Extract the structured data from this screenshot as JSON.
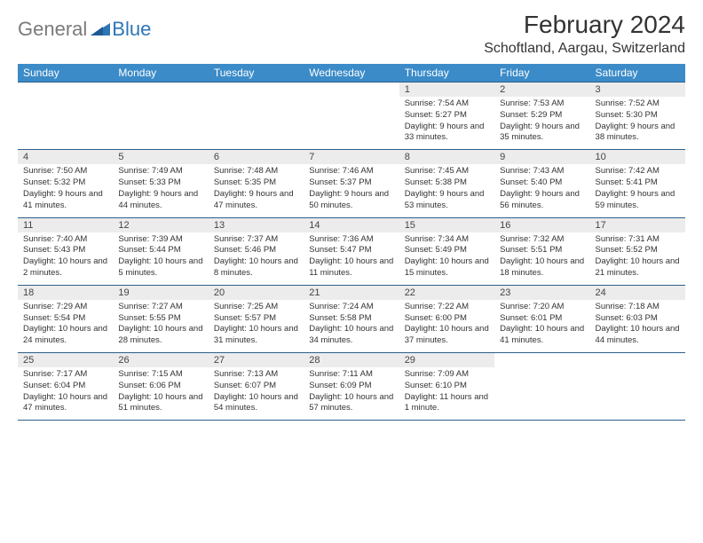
{
  "logo": {
    "general": "General",
    "blue": "Blue"
  },
  "title": "February 2024",
  "location": "Schoftland, Aargau, Switzerland",
  "colors": {
    "header_bg": "#3b8bc8",
    "header_text": "#ffffff",
    "daynum_bg": "#ececec",
    "border": "#2e5f8a",
    "text": "#333333",
    "logo_gray": "#7a7a7a",
    "logo_blue": "#2e75b6"
  },
  "day_names": [
    "Sunday",
    "Monday",
    "Tuesday",
    "Wednesday",
    "Thursday",
    "Friday",
    "Saturday"
  ],
  "weeks": [
    [
      null,
      null,
      null,
      null,
      {
        "n": "1",
        "sr": "7:54 AM",
        "ss": "5:27 PM",
        "dl": "9 hours and 33 minutes."
      },
      {
        "n": "2",
        "sr": "7:53 AM",
        "ss": "5:29 PM",
        "dl": "9 hours and 35 minutes."
      },
      {
        "n": "3",
        "sr": "7:52 AM",
        "ss": "5:30 PM",
        "dl": "9 hours and 38 minutes."
      }
    ],
    [
      {
        "n": "4",
        "sr": "7:50 AM",
        "ss": "5:32 PM",
        "dl": "9 hours and 41 minutes."
      },
      {
        "n": "5",
        "sr": "7:49 AM",
        "ss": "5:33 PM",
        "dl": "9 hours and 44 minutes."
      },
      {
        "n": "6",
        "sr": "7:48 AM",
        "ss": "5:35 PM",
        "dl": "9 hours and 47 minutes."
      },
      {
        "n": "7",
        "sr": "7:46 AM",
        "ss": "5:37 PM",
        "dl": "9 hours and 50 minutes."
      },
      {
        "n": "8",
        "sr": "7:45 AM",
        "ss": "5:38 PM",
        "dl": "9 hours and 53 minutes."
      },
      {
        "n": "9",
        "sr": "7:43 AM",
        "ss": "5:40 PM",
        "dl": "9 hours and 56 minutes."
      },
      {
        "n": "10",
        "sr": "7:42 AM",
        "ss": "5:41 PM",
        "dl": "9 hours and 59 minutes."
      }
    ],
    [
      {
        "n": "11",
        "sr": "7:40 AM",
        "ss": "5:43 PM",
        "dl": "10 hours and 2 minutes."
      },
      {
        "n": "12",
        "sr": "7:39 AM",
        "ss": "5:44 PM",
        "dl": "10 hours and 5 minutes."
      },
      {
        "n": "13",
        "sr": "7:37 AM",
        "ss": "5:46 PM",
        "dl": "10 hours and 8 minutes."
      },
      {
        "n": "14",
        "sr": "7:36 AM",
        "ss": "5:47 PM",
        "dl": "10 hours and 11 minutes."
      },
      {
        "n": "15",
        "sr": "7:34 AM",
        "ss": "5:49 PM",
        "dl": "10 hours and 15 minutes."
      },
      {
        "n": "16",
        "sr": "7:32 AM",
        "ss": "5:51 PM",
        "dl": "10 hours and 18 minutes."
      },
      {
        "n": "17",
        "sr": "7:31 AM",
        "ss": "5:52 PM",
        "dl": "10 hours and 21 minutes."
      }
    ],
    [
      {
        "n": "18",
        "sr": "7:29 AM",
        "ss": "5:54 PM",
        "dl": "10 hours and 24 minutes."
      },
      {
        "n": "19",
        "sr": "7:27 AM",
        "ss": "5:55 PM",
        "dl": "10 hours and 28 minutes."
      },
      {
        "n": "20",
        "sr": "7:25 AM",
        "ss": "5:57 PM",
        "dl": "10 hours and 31 minutes."
      },
      {
        "n": "21",
        "sr": "7:24 AM",
        "ss": "5:58 PM",
        "dl": "10 hours and 34 minutes."
      },
      {
        "n": "22",
        "sr": "7:22 AM",
        "ss": "6:00 PM",
        "dl": "10 hours and 37 minutes."
      },
      {
        "n": "23",
        "sr": "7:20 AM",
        "ss": "6:01 PM",
        "dl": "10 hours and 41 minutes."
      },
      {
        "n": "24",
        "sr": "7:18 AM",
        "ss": "6:03 PM",
        "dl": "10 hours and 44 minutes."
      }
    ],
    [
      {
        "n": "25",
        "sr": "7:17 AM",
        "ss": "6:04 PM",
        "dl": "10 hours and 47 minutes."
      },
      {
        "n": "26",
        "sr": "7:15 AM",
        "ss": "6:06 PM",
        "dl": "10 hours and 51 minutes."
      },
      {
        "n": "27",
        "sr": "7:13 AM",
        "ss": "6:07 PM",
        "dl": "10 hours and 54 minutes."
      },
      {
        "n": "28",
        "sr": "7:11 AM",
        "ss": "6:09 PM",
        "dl": "10 hours and 57 minutes."
      },
      {
        "n": "29",
        "sr": "7:09 AM",
        "ss": "6:10 PM",
        "dl": "11 hours and 1 minute."
      },
      null,
      null
    ]
  ],
  "labels": {
    "sunrise": "Sunrise:",
    "sunset": "Sunset:",
    "daylight": "Daylight:"
  }
}
